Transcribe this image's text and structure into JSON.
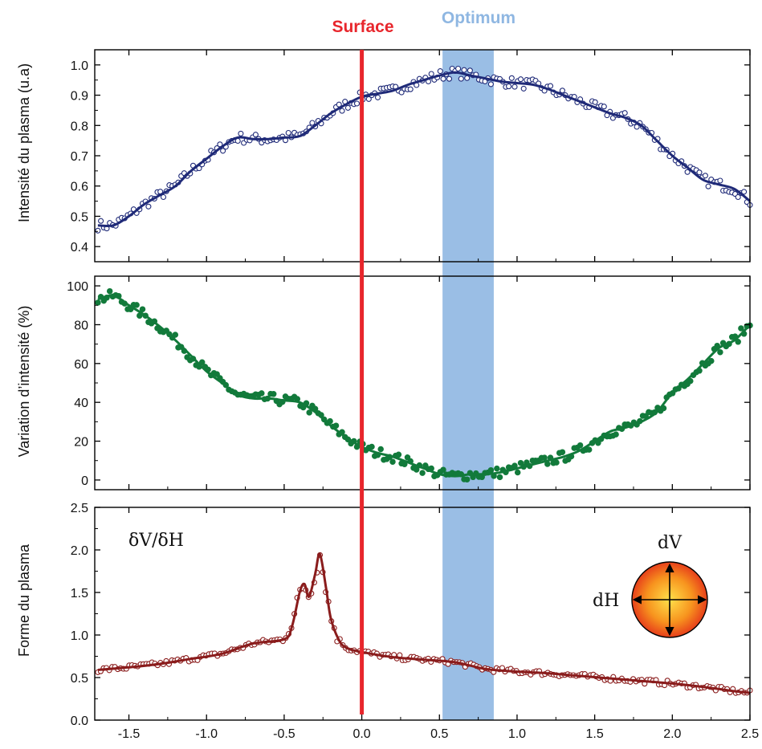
{
  "chart_data": {
    "type": "line",
    "shared_x_axis": {
      "xlim": [
        -1.72,
        2.5
      ],
      "ticks": [
        -1.5,
        -1.0,
        -0.5,
        0.0,
        0.5,
        1.0,
        1.5,
        2.0,
        2.5
      ],
      "tick_labels": [
        "-1.5",
        "-1.0",
        "-0.5",
        "0.0",
        "0.5",
        "1.0",
        "1.5",
        "2.0",
        "2.5"
      ]
    },
    "markers": {
      "surface": {
        "label": "Surface",
        "x": 0.0,
        "color": "#e8262c"
      },
      "optimum": {
        "label": "Optimum",
        "x_range": [
          0.52,
          0.85
        ],
        "color": "#8fb7e2"
      }
    },
    "panels": [
      {
        "id": "intensity",
        "ylabel": "Intensité du plasma (u.a)",
        "ylim": [
          0.35,
          1.05
        ],
        "yticks": [
          0.4,
          0.5,
          0.6,
          0.7,
          0.8,
          0.9,
          1.0
        ],
        "ytick_labels": [
          "0.4",
          "0.5",
          "0.6",
          "0.7",
          "0.8",
          "0.9",
          "1.0"
        ],
        "color": "#1f2a78",
        "marker": "open-circle",
        "x": [
          -1.7,
          -1.6,
          -1.5,
          -1.4,
          -1.3,
          -1.2,
          -1.1,
          -1.0,
          -0.9,
          -0.8,
          -0.7,
          -0.6,
          -0.5,
          -0.4,
          -0.3,
          -0.2,
          -0.1,
          0.0,
          0.1,
          0.2,
          0.3,
          0.4,
          0.5,
          0.6,
          0.7,
          0.8,
          0.9,
          1.0,
          1.1,
          1.2,
          1.3,
          1.4,
          1.5,
          1.6,
          1.7,
          1.8,
          1.9,
          2.0,
          2.1,
          2.2,
          2.3,
          2.4,
          2.5
        ],
        "y": [
          0.47,
          0.47,
          0.5,
          0.54,
          0.57,
          0.6,
          0.65,
          0.69,
          0.73,
          0.76,
          0.755,
          0.755,
          0.76,
          0.765,
          0.8,
          0.84,
          0.87,
          0.895,
          0.905,
          0.915,
          0.935,
          0.95,
          0.965,
          0.975,
          0.965,
          0.955,
          0.945,
          0.94,
          0.935,
          0.92,
          0.9,
          0.88,
          0.86,
          0.84,
          0.825,
          0.8,
          0.75,
          0.7,
          0.66,
          0.62,
          0.605,
          0.59,
          0.55
        ]
      },
      {
        "id": "variation",
        "ylabel": "Variation d’intensité (%)",
        "ylim": [
          -5,
          105
        ],
        "yticks": [
          0,
          20,
          40,
          60,
          80,
          100
        ],
        "ytick_labels": [
          "0",
          "20",
          "40",
          "60",
          "80",
          "100"
        ],
        "color": "#127a3b",
        "marker": "filled-circle",
        "x": [
          -1.7,
          -1.6,
          -1.5,
          -1.4,
          -1.3,
          -1.2,
          -1.1,
          -1.0,
          -0.9,
          -0.8,
          -0.7,
          -0.6,
          -0.5,
          -0.4,
          -0.3,
          -0.2,
          -0.1,
          0.0,
          0.1,
          0.2,
          0.3,
          0.4,
          0.5,
          0.6,
          0.7,
          0.8,
          0.9,
          1.0,
          1.1,
          1.2,
          1.3,
          1.4,
          1.5,
          1.6,
          1.7,
          1.8,
          1.9,
          2.0,
          2.1,
          2.2,
          2.3,
          2.4,
          2.5
        ],
        "y": [
          93,
          95,
          90,
          85,
          79,
          72,
          64,
          56,
          50,
          44,
          42,
          42,
          41,
          40,
          35,
          28,
          22,
          17,
          14,
          12,
          9,
          6,
          3,
          2,
          3,
          3,
          4,
          6,
          8,
          10,
          12,
          15,
          20,
          25,
          27,
          30,
          35,
          45,
          52,
          60,
          68,
          72,
          80
        ]
      },
      {
        "id": "shape",
        "ylabel": "Forme du plasma",
        "ylim": [
          0.0,
          2.5
        ],
        "yticks": [
          0.0,
          0.5,
          1.0,
          1.5,
          2.0,
          2.5
        ],
        "ytick_labels": [
          "0.0",
          "0.5",
          "1.0",
          "1.5",
          "2.0",
          "2.5"
        ],
        "color": "#8a1c1c",
        "marker": "open-circle",
        "annotation": "δV/δH",
        "x": [
          -1.7,
          -1.5,
          -1.3,
          -1.1,
          -0.9,
          -0.7,
          -0.5,
          -0.45,
          -0.4,
          -0.37,
          -0.34,
          -0.3,
          -0.27,
          -0.23,
          -0.2,
          -0.15,
          -0.1,
          0.0,
          0.2,
          0.4,
          0.6,
          0.8,
          1.0,
          1.2,
          1.4,
          1.6,
          1.8,
          2.0,
          2.2,
          2.4,
          2.5
        ],
        "y": [
          0.59,
          0.62,
          0.66,
          0.72,
          0.78,
          0.9,
          0.95,
          1.1,
          1.5,
          1.6,
          1.45,
          1.72,
          1.95,
          1.55,
          1.2,
          0.95,
          0.85,
          0.8,
          0.74,
          0.71,
          0.68,
          0.6,
          0.57,
          0.55,
          0.52,
          0.49,
          0.46,
          0.43,
          0.39,
          0.34,
          0.32
        ]
      }
    ],
    "inset": {
      "top_label": "dV",
      "left_label": "dH"
    }
  }
}
